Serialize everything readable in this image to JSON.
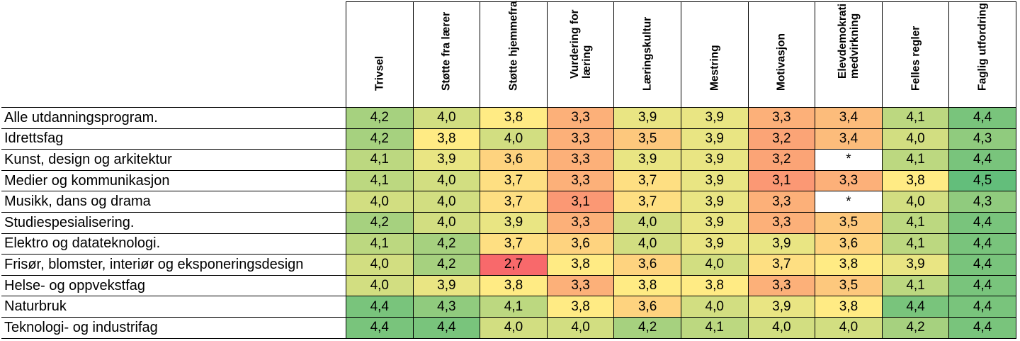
{
  "chart_data": {
    "type": "heatmap",
    "columns": [
      "Trivsel",
      "Støtte fra lærer",
      "Støtte hjemmefra",
      "Vurdering for\nlæring",
      "Læringskultur",
      "Mestring",
      "Motivasjon",
      "Elevdemokrati og\nmedvirkning",
      "Felles regler",
      "Faglig utfordring"
    ],
    "rows": [
      "Alle utdanningsprogram.",
      "Idrettsfag",
      "Kunst, design og arkitektur",
      "Medier og kommunikasjon",
      "Musikk, dans og drama",
      "Studiespesialisering.",
      "Elektro og datateknologi.",
      "Frisør, blomster, interiør og eksponeringsdesign",
      "Helse- og oppvekstfag",
      "Naturbruk",
      "Teknologi- og industrifag"
    ],
    "values": [
      [
        "4,2",
        "4,0",
        "3,8",
        "3,3",
        "3,9",
        "3,9",
        "3,3",
        "3,4",
        "4,1",
        "4,4"
      ],
      [
        "4,2",
        "3,8",
        "4,0",
        "3,3",
        "3,5",
        "3,9",
        "3,2",
        "3,4",
        "4,0",
        "4,3"
      ],
      [
        "4,1",
        "3,9",
        "3,6",
        "3,3",
        "3,9",
        "3,9",
        "3,2",
        "*",
        "4,1",
        "4,4"
      ],
      [
        "4,1",
        "4,0",
        "3,7",
        "3,3",
        "3,7",
        "3,9",
        "3,1",
        "3,3",
        "3,8",
        "4,5"
      ],
      [
        "4,0",
        "4,0",
        "3,7",
        "3,1",
        "3,7",
        "3,9",
        "3,3",
        "*",
        "4,0",
        "4,3"
      ],
      [
        "4,2",
        "4,0",
        "3,9",
        "3,3",
        "4,0",
        "3,9",
        "3,3",
        "3,5",
        "4,1",
        "4,4"
      ],
      [
        "4,1",
        "4,2",
        "3,7",
        "3,6",
        "4,0",
        "3,9",
        "3,9",
        "3,6",
        "4,1",
        "4,4"
      ],
      [
        "4,0",
        "4,2",
        "2,7",
        "3,8",
        "3,6",
        "4,0",
        "3,7",
        "3,8",
        "3,9",
        "4,4"
      ],
      [
        "4,0",
        "3,9",
        "3,8",
        "3,3",
        "3,8",
        "3,8",
        "3,3",
        "3,5",
        "4,1",
        "4,4"
      ],
      [
        "4,4",
        "4,3",
        "4,1",
        "3,8",
        "3,6",
        "4,0",
        "3,9",
        "3,8",
        "4,4",
        "4,4"
      ],
      [
        "4,4",
        "4,4",
        "4,0",
        "4,0",
        "4,2",
        "4,1",
        "4,0",
        "4,0",
        "4,2",
        "4,4"
      ]
    ],
    "colors": {
      "low": "#f8696b",
      "mid": "#ffeb84",
      "high": "#63be7b",
      "missing": "#ffffff"
    },
    "color_scale": {
      "min": 2.7,
      "mid": 3.8,
      "max": 4.5
    }
  }
}
